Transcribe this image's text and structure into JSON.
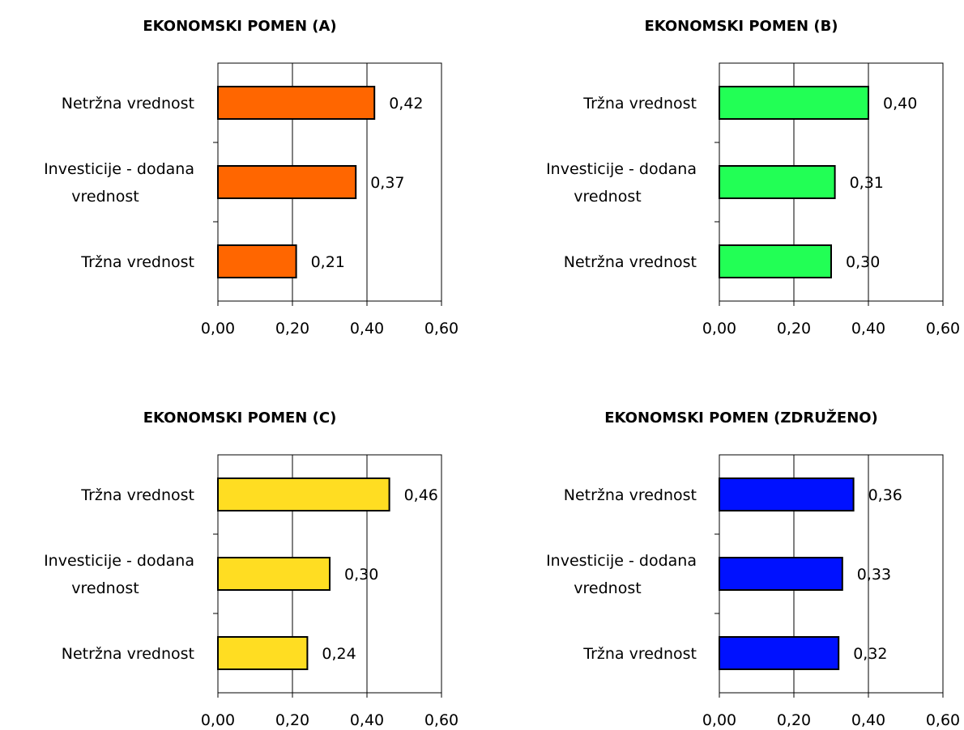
{
  "chart_data": [
    {
      "type": "bar",
      "orientation": "horizontal",
      "title": "EKONOMSKI POMEN (A)",
      "categories": [
        [
          "Netržna vrednost"
        ],
        [
          "Investicije - dodana",
          "vrednost"
        ],
        [
          "Tržna vrednost"
        ]
      ],
      "values": [
        0.42,
        0.37,
        0.21
      ],
      "value_labels": [
        "0,42",
        "0,37",
        "0,21"
      ],
      "xlim": [
        0,
        0.6
      ],
      "xticks": [
        0,
        0.2,
        0.4,
        0.6
      ],
      "xtick_labels": [
        "0,00",
        "0,20",
        "0,40",
        "0,60"
      ],
      "grid": "vertical",
      "legend": "none",
      "color": "#FF6600"
    },
    {
      "type": "bar",
      "orientation": "horizontal",
      "title": "EKONOMSKI POMEN (B)",
      "categories": [
        [
          "Tržna vrednost"
        ],
        [
          "Investicije - dodana",
          "vrednost"
        ],
        [
          "Netržna vrednost"
        ]
      ],
      "values": [
        0.4,
        0.31,
        0.3
      ],
      "value_labels": [
        "0,40",
        "0,31",
        "0,30"
      ],
      "xlim": [
        0,
        0.6
      ],
      "xticks": [
        0,
        0.2,
        0.4,
        0.6
      ],
      "xtick_labels": [
        "0,00",
        "0,20",
        "0,40",
        "0,60"
      ],
      "grid": "vertical",
      "legend": "none",
      "color": "#22FF55"
    },
    {
      "type": "bar",
      "orientation": "horizontal",
      "title": "EKONOMSKI POMEN (C)",
      "categories": [
        [
          "Tržna vrednost"
        ],
        [
          "Investicije - dodana",
          "vrednost"
        ],
        [
          "Netržna vrednost"
        ]
      ],
      "values": [
        0.46,
        0.3,
        0.24
      ],
      "value_labels": [
        "0,46",
        "0,30",
        "0,24"
      ],
      "xlim": [
        0,
        0.6
      ],
      "xticks": [
        0,
        0.2,
        0.4,
        0.6
      ],
      "xtick_labels": [
        "0,00",
        "0,20",
        "0,40",
        "0,60"
      ],
      "grid": "vertical",
      "legend": "none",
      "color": "#FFDD22"
    },
    {
      "type": "bar",
      "orientation": "horizontal",
      "title": "EKONOMSKI POMEN (ZDRUŽENO)",
      "categories": [
        [
          "Netržna vrednost"
        ],
        [
          "Investicije - dodana",
          "vrednost"
        ],
        [
          "Tržna vrednost"
        ]
      ],
      "values": [
        0.36,
        0.33,
        0.32
      ],
      "value_labels": [
        "0,36",
        "0,33",
        "0,32"
      ],
      "xlim": [
        0,
        0.6
      ],
      "xticks": [
        0,
        0.2,
        0.4,
        0.6
      ],
      "xtick_labels": [
        "0,00",
        "0,20",
        "0,40",
        "0,60"
      ],
      "grid": "vertical",
      "legend": "none",
      "color": "#0011FF"
    }
  ]
}
